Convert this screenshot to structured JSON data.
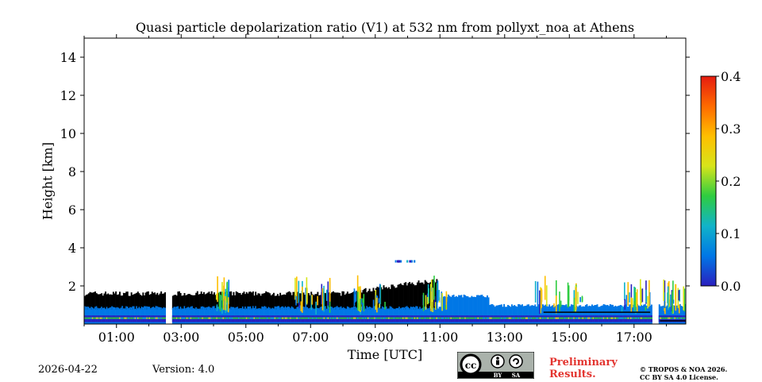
{
  "chart_data": {
    "type": "heatmap",
    "title": "Quasi particle depolarization ratio (V1) at 532 nm from pollyxt_noa at Athens",
    "xlabel": "Time [UTC]",
    "ylabel": "Height [km]",
    "xlim_hours": [
      0,
      18.6
    ],
    "ylim_km": [
      0,
      15
    ],
    "x_ticks": [
      {
        "value": 1,
        "label": "01:00"
      },
      {
        "value": 3,
        "label": "03:00"
      },
      {
        "value": 5,
        "label": "05:00"
      },
      {
        "value": 7,
        "label": "07:00"
      },
      {
        "value": 9,
        "label": "09:00"
      },
      {
        "value": 11,
        "label": "11:00"
      },
      {
        "value": 13,
        "label": "13:00"
      },
      {
        "value": 15,
        "label": "15:00"
      },
      {
        "value": 17,
        "label": "17:00"
      }
    ],
    "y_ticks": [
      {
        "value": 2,
        "label": "2"
      },
      {
        "value": 4,
        "label": "4"
      },
      {
        "value": 6,
        "label": "6"
      },
      {
        "value": 8,
        "label": "8"
      },
      {
        "value": 10,
        "label": "10"
      },
      {
        "value": 12,
        "label": "12"
      },
      {
        "value": 14,
        "label": "14"
      }
    ],
    "colorbar": {
      "min": 0.0,
      "max": 0.4,
      "ticks": [
        {
          "value": 0.0,
          "label": "0.0"
        },
        {
          "value": 0.1,
          "label": "0.1"
        },
        {
          "value": 0.2,
          "label": "0.2"
        },
        {
          "value": 0.3,
          "label": "0.3"
        },
        {
          "value": 0.4,
          "label": "0.4"
        }
      ],
      "colors": [
        "#2a1fbf",
        "#0077e6",
        "#11b3c9",
        "#2ecc40",
        "#d7e51a",
        "#ffbf00",
        "#ff6a00",
        "#e51c10"
      ]
    },
    "layers": {
      "night_noise_top_km": 1.6,
      "night_noise_color": "#000000",
      "aerosol_layer_top_km": 0.8,
      "daytime_layer_top_km": 0.9,
      "data_gaps_hours": [
        [
          2.5,
          2.7
        ],
        [
          17.55,
          17.75
        ]
      ]
    }
  },
  "footer": {
    "date": "2026-04-22",
    "version": "Version: 4.0",
    "preliminary_line1": "Preliminary",
    "preliminary_line2": "Results.",
    "copyright_line1": "© TROPOS & NOA 2026.",
    "copyright_line2": "CC BY SA 4.0 License."
  },
  "license_badge": {
    "cc": "cc",
    "by": "BY",
    "sa": "SA"
  }
}
